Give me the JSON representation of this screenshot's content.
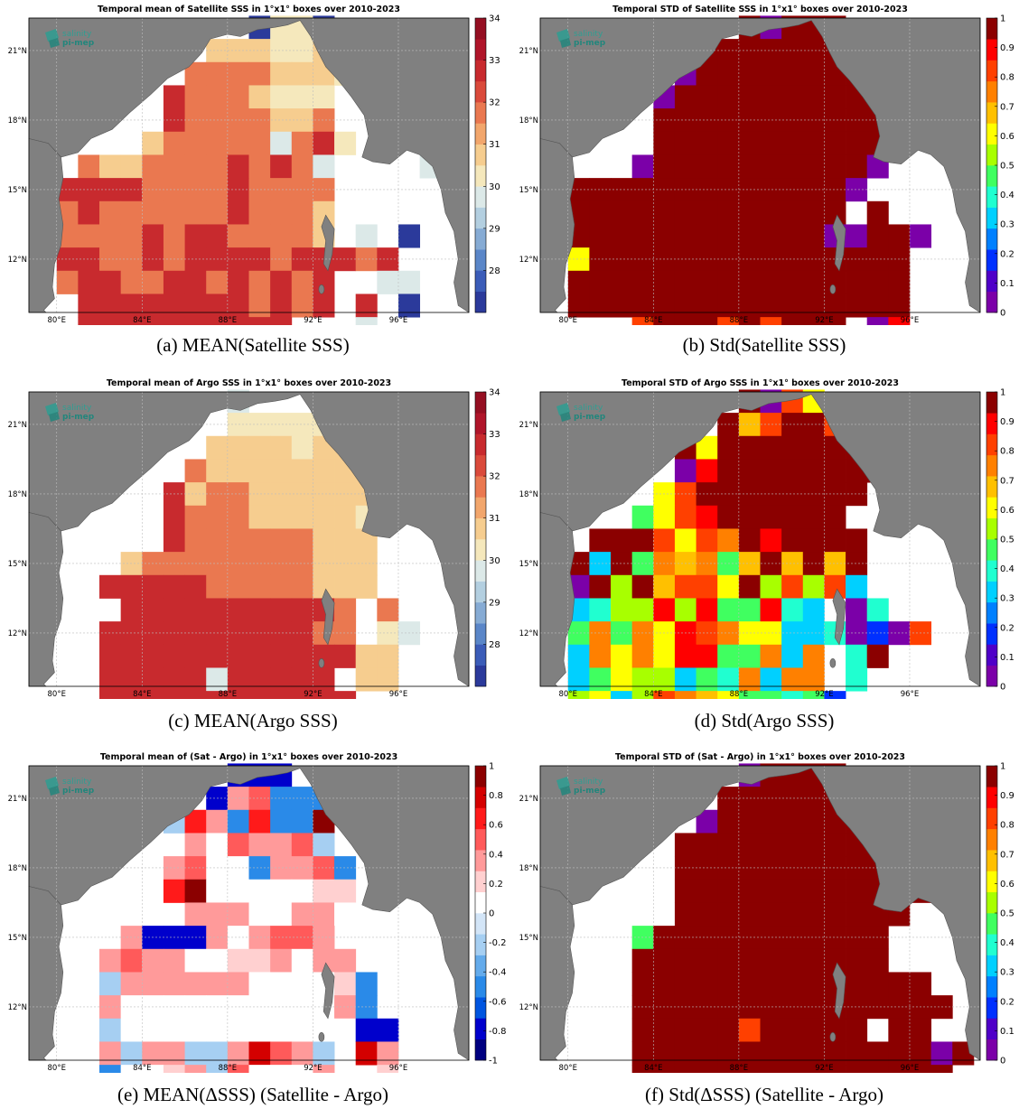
{
  "logo": {
    "line1": "salinity",
    "line2": "pi-mep"
  },
  "lon_ticks": [
    {
      "lon": 80,
      "label": "80°E"
    },
    {
      "lon": 84,
      "label": "84°E"
    },
    {
      "lon": 88,
      "label": "88°E"
    },
    {
      "lon": 92,
      "label": "92°E"
    },
    {
      "lon": 96,
      "label": "96°E"
    }
  ],
  "lat_ticks": [
    {
      "lat": 12,
      "label": "12°N"
    },
    {
      "lat": 15,
      "label": "15°N"
    },
    {
      "lat": 18,
      "label": "18°N"
    },
    {
      "lat": 21,
      "label": "21°N"
    }
  ],
  "colors": {
    "land": "#808080",
    "ocean": "#ffffff",
    "grid": "#bdbdbd"
  },
  "chart_data": [
    {
      "type": "heatmap",
      "id": "a",
      "title": "Temporal mean of Satellite SSS in 1°x1° boxes over 2010-2023",
      "caption": "(a) MEAN(Satellite SSS)",
      "colorscale": "salinity",
      "clim": [
        27,
        34
      ],
      "cbar_ticks": [
        "28",
        "29",
        "30",
        "31",
        "32",
        "33",
        "34"
      ],
      "xlim": [
        78.7,
        99.3
      ],
      "ylim": [
        9.7,
        22.4
      ],
      "lon0": 80.5,
      "lat0": 22,
      "rows": [
        "---------0110-----",
        "-------22211228---",
        "------33332221----",
        "-----43332111-----",
        "-----43333223-----",
        "----2333335341----",
        "-322333343435----5",
        "4444333343333-----",
        "3433333343332-----",
        "3333434433332-5-0-",
        "4433434444344434--",
        "3443344343434--55-",
        "-444444443434-4-0-",
        "-4444444444---5---"
      ]
    },
    {
      "type": "heatmap",
      "id": "b",
      "title": "Temporal STD of Satellite SSS in 1°x1° boxes over 2010-2023",
      "caption": "(b) Std(Satellite SSS)",
      "colorscale": "jet",
      "clim": [
        0,
        1
      ],
      "cbar_ticks": [
        "0",
        "0.1",
        "0.2",
        "0.3",
        "0.4",
        "0.5",
        "0.6",
        "0.7",
        "0.8",
        "0.9",
        "1"
      ],
      "xlim": [
        78.7,
        99.3
      ],
      "ylim": [
        9.7,
        22.4
      ],
      "lon0": 80.5,
      "lat0": 22,
      "rows": [
        "--------D0DDD-----",
        "------DDDDDDDD----",
        "-----0DDDDDDDD----",
        "----0DDDDDDDDDD---",
        "----DDDDDDDDDDD---",
        "----DDDDDDDDDDDD--",
        "---0DDDDDDDDDD0---",
        "DDDDDDDDDDDDD0----",
        "DDDDDDDDDDDDD-D---",
        "DDDDDDDDDDDD00DD0-",
        "8DDDDDDDDDDDDDDD--",
        "DDDDDDDDDDDDDDDD--",
        "DDDDDDDDDDDDDDDD--",
        "---BDDDBDBDDD-0C--"
      ]
    },
    {
      "type": "heatmap",
      "id": "c",
      "title": "Temporal mean of Argo SSS in 1°x1° boxes over 2010-2023",
      "caption": "(c) MEAN(Argo SSS)",
      "colorscale": "salinity",
      "clim": [
        27,
        34
      ],
      "cbar_ticks": [
        "28",
        "29",
        "30",
        "31",
        "32",
        "33",
        "34"
      ],
      "xlim": [
        78.7,
        99.3
      ],
      "ylim": [
        9.7,
        22.4
      ],
      "lon0": 80.5,
      "lat0": 22,
      "rows": [
        "--------6--------",
        "--------11111----",
        "-------222212222-",
        "------322222222--",
        "-----4233222222--",
        "-----43332222211-",
        "-----4333333222--",
        "---233333333222--",
        "--4444433333222--",
        "---44444444443-3-",
        "--444444444433-15",
        "--44444444444422-",
        "--44444544444-22-",
        "--444444444444---"
      ]
    },
    {
      "type": "heatmap",
      "id": "d",
      "title": "Temporal STD of Argo SSS in 1°x1° boxes over 2010-2023",
      "caption": "(d) Std(Argo SSS)",
      "colorscale": "jet",
      "clim": [
        0,
        1
      ],
      "cbar_ticks": [
        "0",
        "0.1",
        "0.2",
        "0.3",
        "0.4",
        "0.5",
        "0.6",
        "0.7",
        "0.8",
        "0.9",
        "1"
      ],
      "xlim": [
        78.7,
        99.3
      ],
      "ylim": [
        9.7,
        22.4
      ],
      "lon0": 80.5,
      "lat0": 22,
      "rows": [
        "--------D0B8-----",
        "-------D9BDDB----",
        "-----D7DDDDDDDD--",
        "-----0CDDDDDDDD--",
        "----7BDDDDDDDD---",
        "---57BCDDDDDD---",
        "-DDDB7BADCDDDD---",
        "D3D5A9A59D9D9D---",
        "0D6D9BB8D6B6B3---",
        "3466C6C55C43-04--",
        "5A5A8CBA77334020B",
        "3A7A8CC55A3A-4D--",
        "35766354A3AA-4---",
        "6736BA9755452----"
      ]
    },
    {
      "type": "heatmap",
      "id": "e",
      "title": "Temporal mean of (Sat - Argo) in 1°x1° boxes over 2010-2023",
      "caption": "(e) MEAN(ΔSSS) (Satellite - Argo)",
      "colorscale": "diverging",
      "clim": [
        -1,
        1
      ],
      "cbar_ticks": [
        "-1",
        "-0.8",
        "-0.6",
        "-0.4",
        "-0.2",
        "0",
        "0.2",
        "0.4",
        "0.6",
        "0.8",
        "1"
      ],
      "xlim": [
        78.7,
        99.3
      ],
      "ylim": [
        9.7,
        22.4
      ],
      "lon0": 80.5,
      "lat0": 22,
      "rows": [
        "--------000------",
        "-------0A7111----",
        "-----3861812B----",
        "------6576673----",
        "-----A7552AA71---",
        "-----8B5555544---",
        "------6A655665---",
        "---A000656776----",
        "--A76655446566----",
        "--3666666555541--",
        "--6555555555561--",
        "--35555555555500-",
        "--A36633A97A3-9A-",
        "--1554637555A--45",
        "--4453447655BA--1"
      ]
    },
    {
      "type": "heatmap",
      "id": "f",
      "title": "Temporal STD of (Sat - Argo) in 1°x1° boxes over 2010-2023",
      "caption": "(f) Std(ΔSSS) (Satellite - Argo)",
      "colorscale": "jet",
      "clim": [
        0,
        1
      ],
      "cbar_ticks": [
        "0",
        "0.1",
        "0.2",
        "0.3",
        "0.4",
        "0.5",
        "0.6",
        "0.7",
        "0.8",
        "0.9",
        "1"
      ],
      "xlim": [
        78.7,
        99.3
      ],
      "ylim": [
        9.7,
        22.4
      ],
      "lon0": 80.5,
      "lat0": 22,
      "rows": [
        "--------0DDDD-----",
        "-------DDDDDDD----",
        "------0DDDDDDDD---",
        "-----DDDDDDDDDD---",
        "-----DDDDDDDDDD---",
        "-----DDDDDDDDDDDD-",
        "-----DDDDDDDDDDD--",
        "---5DDDDDDDDDDD---",
        "---DDDDDDDDDDDD---",
        "---DDDDDDDDDDDDDD--",
        "---DDDDDDDDDDDDDDD-",
        "---DDDDDBDDDDD-DD--",
        "---DDDDDDDDDDDDDD0D",
        "---DDDDDDDDDDDDDDD-",
        "----DBDDDBDBDD-0B--",
        "----BDBBDBDDD--0B--"
      ]
    }
  ]
}
